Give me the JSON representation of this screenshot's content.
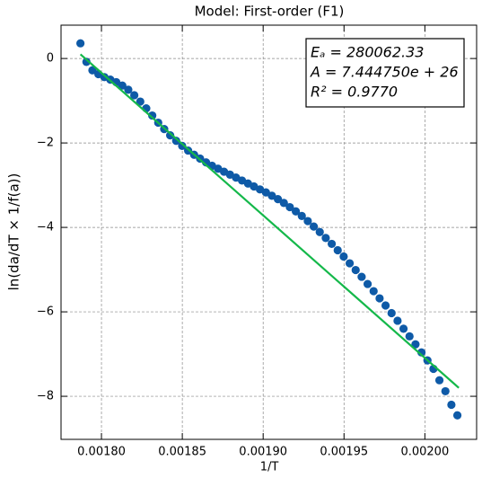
{
  "chart_data": {
    "type": "scatter",
    "title": "Model: First-order (F1)",
    "xlabel": "1/T",
    "ylabel": "ln(da/dT × 1/f(a))",
    "annotations": [
      "Eₐ = 280062.33",
      "A = 7.444750e + 26",
      "R² = 0.9770"
    ],
    "xlim": [
      0.001775,
      0.002032
    ],
    "ylim": [
      -9.02,
      0.79
    ],
    "xticks": [
      {
        "value": 0.0018,
        "label": "0.00180"
      },
      {
        "value": 0.00185,
        "label": "0.00185"
      },
      {
        "value": 0.0019,
        "label": "0.00190"
      },
      {
        "value": 0.00195,
        "label": "0.00195"
      },
      {
        "value": 0.002,
        "label": "0.00200"
      }
    ],
    "yticks": [
      {
        "value": 0,
        "label": "0"
      },
      {
        "value": -2,
        "label": "−2"
      },
      {
        "value": -4,
        "label": "−4"
      },
      {
        "value": -6,
        "label": "−6"
      },
      {
        "value": -8,
        "label": "−8"
      }
    ],
    "grid": true,
    "series": [
      {
        "kind": "points",
        "color": "#0e5aa7",
        "x": [
          0.001787,
          0.0017907,
          0.0017944,
          0.0017981,
          0.0018018,
          0.0018055,
          0.0018092,
          0.0018129,
          0.0018166,
          0.0018203,
          0.001824,
          0.0018277,
          0.0018314,
          0.0018351,
          0.0018388,
          0.0018425,
          0.0018462,
          0.0018499,
          0.0018536,
          0.0018573,
          0.001861,
          0.0018647,
          0.0018684,
          0.0018721,
          0.0018758,
          0.0018795,
          0.0018832,
          0.0018869,
          0.0018906,
          0.0018943,
          0.001898,
          0.0019017,
          0.0019054,
          0.0019091,
          0.0019128,
          0.0019165,
          0.0019202,
          0.0019239,
          0.0019276,
          0.0019313,
          0.001935,
          0.0019387,
          0.0019424,
          0.0019461,
          0.0019498,
          0.0019535,
          0.0019572,
          0.0019609,
          0.0019646,
          0.0019683,
          0.001972,
          0.0019757,
          0.0019794,
          0.0019831,
          0.0019868,
          0.0019905,
          0.0019942,
          0.0019979,
          0.0020016,
          0.0020053,
          0.002009,
          0.0020127,
          0.0020164,
          0.0020201
        ],
        "values": [
          0.36,
          -0.08,
          -0.28,
          -0.37,
          -0.44,
          -0.5,
          -0.56,
          -0.64,
          -0.74,
          -0.87,
          -1.02,
          -1.18,
          -1.35,
          -1.52,
          -1.67,
          -1.82,
          -1.95,
          -2.07,
          -2.18,
          -2.28,
          -2.37,
          -2.46,
          -2.54,
          -2.61,
          -2.68,
          -2.75,
          -2.82,
          -2.89,
          -2.96,
          -3.03,
          -3.1,
          -3.17,
          -3.25,
          -3.33,
          -3.42,
          -3.52,
          -3.62,
          -3.73,
          -3.85,
          -3.98,
          -4.11,
          -4.25,
          -4.39,
          -4.54,
          -4.69,
          -4.85,
          -5.01,
          -5.17,
          -5.34,
          -5.51,
          -5.68,
          -5.85,
          -6.03,
          -6.21,
          -6.4,
          -6.58,
          -6.77,
          -6.96,
          -7.15,
          -7.35,
          -7.62,
          -7.88,
          -8.2,
          -8.45
        ]
      },
      {
        "kind": "line",
        "color": "#14b84a",
        "x": [
          0.001787,
          0.002021
        ],
        "values": [
          0.1,
          -7.8
        ]
      }
    ]
  }
}
